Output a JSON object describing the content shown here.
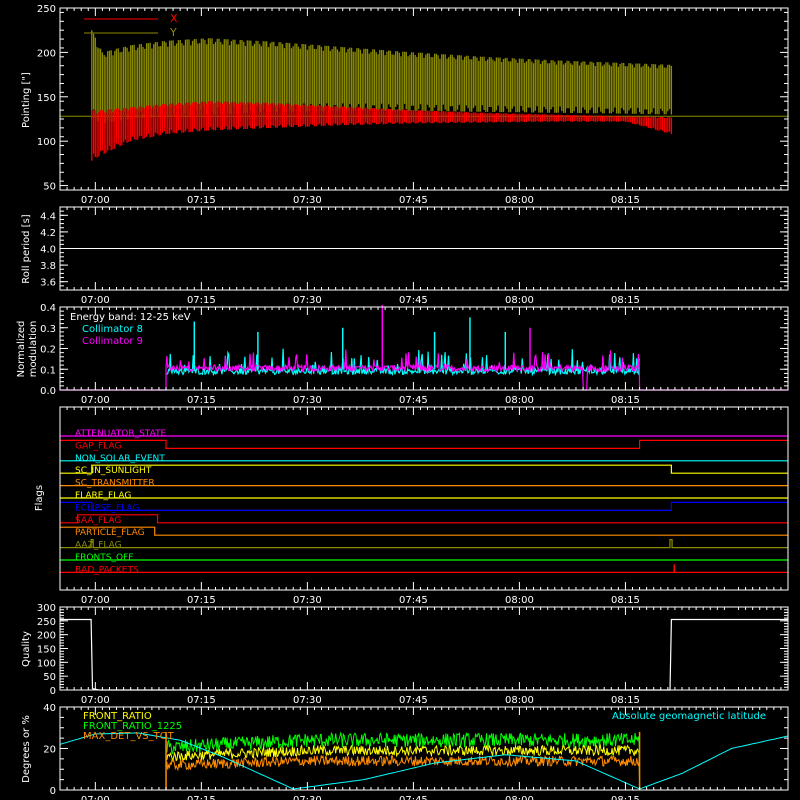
{
  "time_axis": {
    "ticks": [
      "07:00",
      "07:15",
      "07:30",
      "07:45",
      "08:00",
      "08:15"
    ],
    "tick_minutes": [
      420,
      435,
      450,
      465,
      480,
      495
    ],
    "range_minutes": [
      415,
      518
    ]
  },
  "colors": {
    "background": "#000000",
    "axis": "#ffffff",
    "x_red": "#ff0000",
    "y_olive": "#8c8c00",
    "cyan": "#00ffff",
    "magenta": "#ff00ff",
    "green": "#00ff00",
    "orange": "#ff8c00",
    "yellow": "#ffff00",
    "blue": "#0000ff"
  },
  "chart_data": [
    {
      "id": "pointing",
      "type": "line",
      "ylabel": "Pointing [\"]",
      "ylim": [
        45,
        250
      ],
      "yticks": [
        "50",
        "100",
        "150",
        "200",
        "250"
      ],
      "ytick_values": [
        50,
        100,
        150,
        200,
        250
      ],
      "legend": [
        {
          "name": "X",
          "color": "#ff0000"
        },
        {
          "name": "Y",
          "color": "#8c8c00"
        }
      ],
      "reference_level": 128,
      "data_start_min": 419.5,
      "data_end_min": 501.5,
      "series": [
        {
          "name": "Y",
          "x": [
            419.5,
            421,
            425,
            430,
            436,
            445,
            455,
            465,
            475,
            485,
            495,
            501.5
          ],
          "upper": [
            225,
            200,
            208,
            213,
            216,
            212,
            206,
            200,
            195,
            191,
            188,
            186
          ],
          "lower": [
            125,
            120,
            125,
            128,
            130,
            133,
            134,
            134,
            133,
            132,
            131,
            130
          ]
        },
        {
          "name": "X",
          "x": [
            419.5,
            421,
            425,
            430,
            436,
            445,
            455,
            465,
            475,
            485,
            495,
            501.5
          ],
          "upper": [
            135,
            135,
            138,
            142,
            145,
            143,
            139,
            135,
            132,
            130,
            128,
            127
          ],
          "lower": [
            78,
            85,
            100,
            108,
            112,
            115,
            118,
            120,
            121,
            122,
            122,
            108
          ]
        }
      ]
    },
    {
      "id": "roll_period",
      "type": "line",
      "ylabel": "Roll period [s]",
      "ylim": [
        3.5,
        4.5
      ],
      "yticks": [
        "3.6",
        "3.8",
        "4.0",
        "4.2",
        "4.4"
      ],
      "ytick_values": [
        3.6,
        3.8,
        4.0,
        4.2,
        4.4
      ],
      "series": [
        {
          "x": [
            415,
            518
          ],
          "y": [
            4.0,
            4.0
          ]
        }
      ]
    },
    {
      "id": "modulation",
      "type": "line",
      "ylabel_line1": "Normalized",
      "ylabel_line2": "modulation",
      "ylim": [
        0,
        0.4
      ],
      "yticks": [
        "0.0",
        "0.1",
        "0.2",
        "0.3",
        "0.4"
      ],
      "ytick_values": [
        0.0,
        0.1,
        0.2,
        0.3,
        0.4
      ],
      "legend_title": "Energy band: 12-25 keV",
      "legend": [
        {
          "name": "Collimator 8",
          "color": "#00ffff"
        },
        {
          "name": "Collimator 9",
          "color": "#ff00ff"
        }
      ],
      "active_start_min": 430,
      "active_end_min": 497,
      "c9_gap_min": [
        489,
        489.6
      ],
      "baseline_value": 0.1,
      "tall_spikes": [
        {
          "x": 434,
          "y": 0.33,
          "series": "Collimator 8"
        },
        {
          "x": 443,
          "y": 0.28,
          "series": "Collimator 8"
        },
        {
          "x": 455,
          "y": 0.3,
          "series": "Collimator 8"
        },
        {
          "x": 460.6,
          "y": 0.41,
          "series": "Collimator 9"
        },
        {
          "x": 468,
          "y": 0.28,
          "series": "Collimator 8"
        },
        {
          "x": 473,
          "y": 0.35,
          "series": "Collimator 8"
        },
        {
          "x": 478,
          "y": 0.28,
          "series": "Collimator 8"
        },
        {
          "x": 481.5,
          "y": 0.3,
          "series": "Collimator 9"
        }
      ]
    },
    {
      "id": "flags",
      "type": "line",
      "ylabel": "Flags",
      "rows": [
        {
          "name": "ATTENUATOR_STATE",
          "color": "#ff00ff",
          "segments": [
            [
              415,
              518,
              0
            ]
          ]
        },
        {
          "name": "GAP_FLAG",
          "color": "#ff0000",
          "segments": [
            [
              415,
              430,
              1
            ],
            [
              430,
              497,
              0
            ],
            [
              497,
              518,
              1
            ]
          ]
        },
        {
          "name": "NON_SOLAR_EVENT",
          "color": "#00ffff",
          "segments": [
            [
              415,
              518,
              0
            ]
          ]
        },
        {
          "name": "SC_IN_SUNLIGHT",
          "color": "#ffff00",
          "segments": [
            [
              415,
              419.5,
              0
            ],
            [
              419.5,
              501.5,
              1
            ],
            [
              501.5,
              518,
              0
            ]
          ]
        },
        {
          "name": "SC_TRANSMITTER",
          "color": "#ff8c00",
          "segments": [
            [
              415,
              518,
              0
            ]
          ]
        },
        {
          "name": "FLARE_FLAG",
          "color": "#ffff00",
          "segments": [
            [
              415,
              518,
              0
            ]
          ]
        },
        {
          "name": "ECLIPSE_FLAG",
          "color": "#0000ff",
          "segments": [
            [
              415,
              419.5,
              1
            ],
            [
              419.5,
              501.5,
              0
            ],
            [
              501.5,
              518,
              1
            ]
          ]
        },
        {
          "name": "SAA_FLAG",
          "color": "#ff0000",
          "segments": [
            [
              415,
              417.5,
              0
            ],
            [
              417.5,
              428.8,
              1
            ],
            [
              428.8,
              518,
              0
            ]
          ]
        },
        {
          "name": "PARTICLE_FLAG",
          "color": "#ff8c00",
          "segments": [
            [
              415,
              428.4,
              1
            ],
            [
              428.4,
              518,
              0
            ]
          ]
        },
        {
          "name": "AAZ_FLAG",
          "color": "#8c8c00",
          "segments": [
            [
              415,
              419.4,
              0
            ],
            [
              419.4,
              419.7,
              1
            ],
            [
              419.7,
              501.3,
              0
            ],
            [
              501.3,
              501.6,
              1
            ],
            [
              501.6,
              518,
              0
            ]
          ]
        },
        {
          "name": "FRONTS_OFF",
          "color": "#00ff00",
          "segments": [
            [
              415,
              518,
              0
            ]
          ]
        },
        {
          "name": "BAD_PACKETS",
          "color": "#ff0000",
          "segments": [
            [
              415,
              518,
              0
            ]
          ],
          "spikes": [
            501.9
          ]
        }
      ]
    },
    {
      "id": "quality",
      "type": "line",
      "ylabel": "Quality",
      "ylim": [
        0,
        300
      ],
      "yticks": [
        "0",
        "50",
        "100",
        "150",
        "200",
        "250",
        "300"
      ],
      "ytick_values": [
        0,
        50,
        100,
        150,
        200,
        250,
        300
      ],
      "series": [
        {
          "x": [
            415,
            419.4,
            419.6,
            420.5,
            501.3,
            501.5,
            518
          ],
          "y": [
            255,
            255,
            5,
            0,
            0,
            255,
            255
          ]
        }
      ]
    },
    {
      "id": "ratios",
      "type": "line",
      "ylabel": "Degrees or %",
      "ylim": [
        0,
        40
      ],
      "yticks": [
        "0",
        "20",
        "40"
      ],
      "ytick_values": [
        0,
        20,
        40
      ],
      "legend": [
        {
          "name": "FRONT_RATIO",
          "color": "#ffff00"
        },
        {
          "name": "FRONT_RATIO_1225",
          "color": "#00ff00"
        },
        {
          "name": "MAX_DET_VS_TOT",
          "color": "#ff8c00"
        }
      ],
      "right_label": "Absolute geomagnetic latitude",
      "right_label_color": "#00ffff",
      "latitude": {
        "x": [
          415,
          420,
          426,
          432,
          438,
          448,
          458,
          468,
          478,
          488,
          497,
          503,
          510,
          518
        ],
        "y": [
          22,
          27,
          27.5,
          24,
          16,
          0.5,
          5,
          13,
          17,
          14,
          0.5,
          8,
          20,
          26
        ]
      },
      "active_start_min": 430,
      "active_end_min": 497,
      "front_ratio_1225_level": 24,
      "front_ratio_level": 19,
      "max_det_level": 14
    }
  ]
}
